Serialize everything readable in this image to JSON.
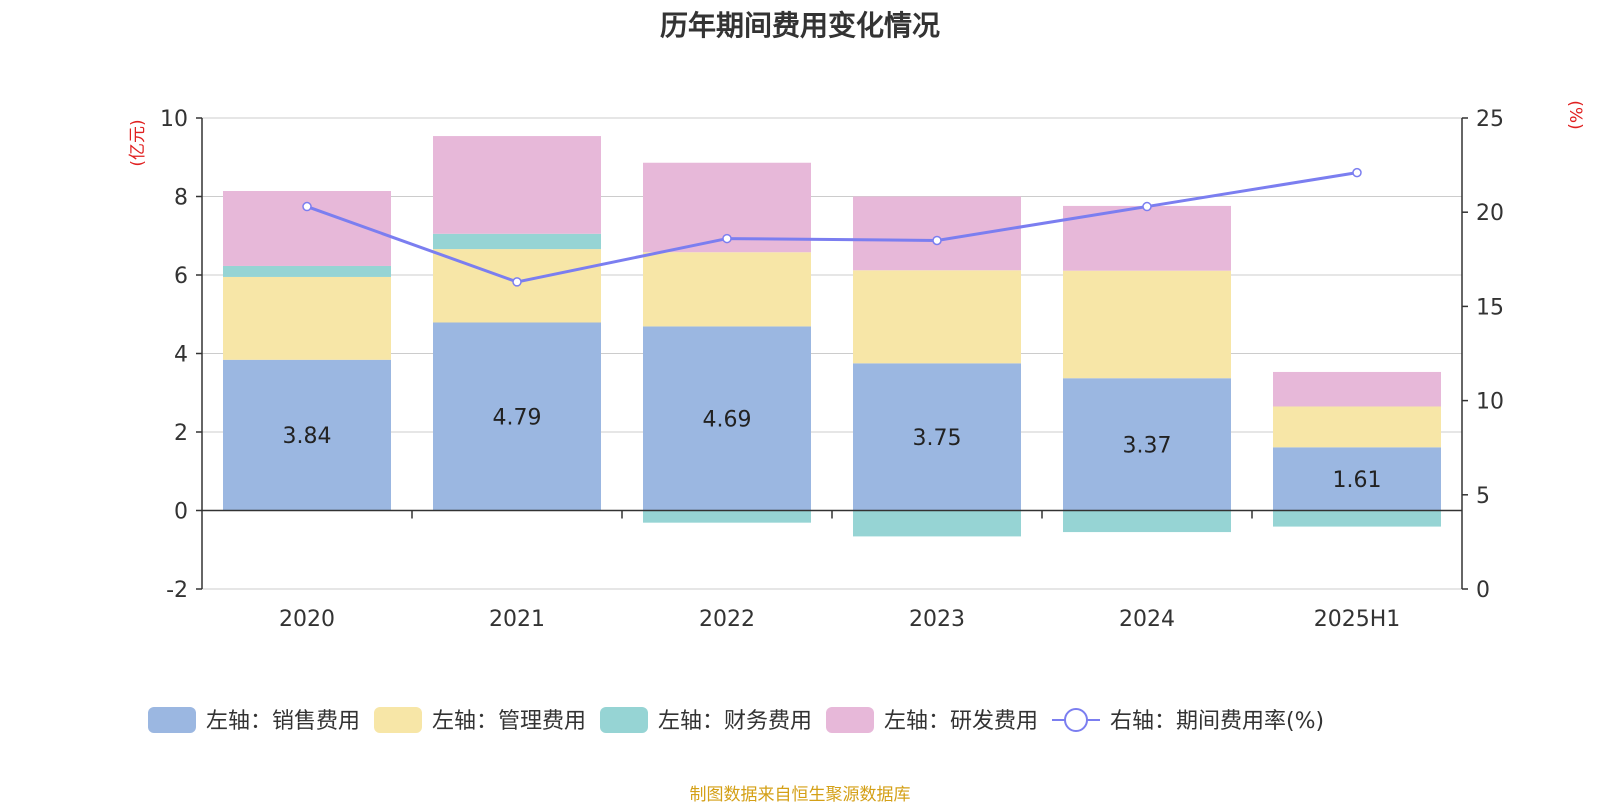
{
  "chart_data": {
    "type": "bar",
    "title": "历年期间费用变化情况",
    "left_axis_unit": "(亿元)",
    "right_axis_unit": "(%)",
    "categories": [
      "2020",
      "2021",
      "2022",
      "2023",
      "2024",
      "2025H1"
    ],
    "left_ylim": [
      -2,
      10
    ],
    "left_ticks": [
      -2,
      0,
      2,
      4,
      6,
      8,
      10
    ],
    "right_ylim": [
      0,
      25
    ],
    "right_ticks": [
      0,
      5,
      10,
      15,
      20,
      25
    ],
    "grid": true,
    "legend_position": "bottom",
    "series": [
      {
        "name": "左轴：销售费用",
        "axis": "left",
        "kind": "bar",
        "color": "#9bb7e1",
        "values": [
          3.84,
          4.79,
          4.69,
          3.75,
          3.37,
          1.61
        ],
        "show_labels": true
      },
      {
        "name": "左轴：管理费用",
        "axis": "left",
        "kind": "bar",
        "color": "#f7e6a7",
        "values": [
          2.11,
          1.87,
          1.89,
          2.37,
          2.74,
          1.04
        ]
      },
      {
        "name": "左轴：财务费用",
        "axis": "left",
        "kind": "bar",
        "color": "#96d4d4",
        "values": [
          0.28,
          0.39,
          -0.31,
          -0.66,
          -0.55,
          -0.41
        ]
      },
      {
        "name": "左轴：研发费用",
        "axis": "left",
        "kind": "bar",
        "color": "#e7b8d9",
        "values": [
          1.91,
          2.49,
          2.28,
          1.88,
          1.65,
          0.88
        ]
      },
      {
        "name": "右轴：期间费用率(%)",
        "axis": "right",
        "kind": "line",
        "color": "#7b7ef0",
        "values": [
          20.3,
          16.3,
          18.6,
          18.5,
          20.3,
          22.1
        ]
      }
    ]
  },
  "footer": "制图数据来自恒生聚源数据库"
}
